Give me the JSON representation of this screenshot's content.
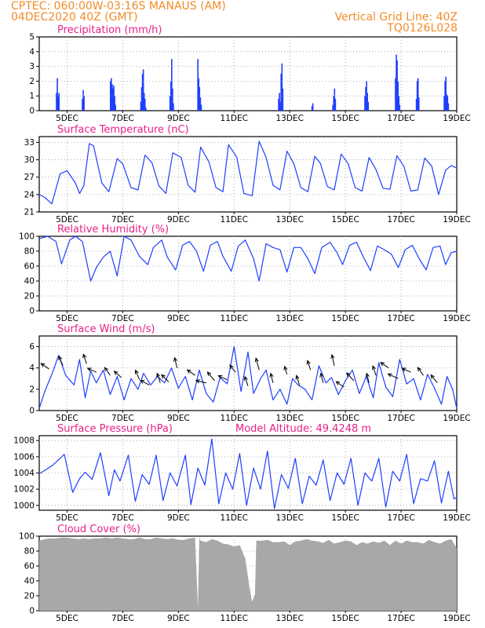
{
  "header": {
    "line1_left": "CPTEC:   060:00W-03:16S   MANAUS (AM)",
    "line2_left": "04DEC2020 40Z (GMT)",
    "line2_right": "Vertical Grid Line: 40Z",
    "line3_right": "TQ0126L028"
  },
  "colors": {
    "header": "#f08c28",
    "title": "#e8208a",
    "series": "#1f3fff",
    "arrow": "#000000",
    "cloud": "#a8a8a8",
    "grid": "#9a9a9a"
  },
  "x_axis": {
    "range_days": [
      4.0,
      19.0
    ],
    "tick_days": [
      5,
      7,
      9,
      11,
      13,
      15,
      17,
      19
    ],
    "tick_labels": [
      "5DEC",
      "7DEC",
      "9DEC",
      "11DEC",
      "13DEC",
      "15DEC",
      "17DEC",
      "19DEC"
    ]
  },
  "chart_data": [
    {
      "id": "precip",
      "type": "bar",
      "title": "Precipitation (mm/h)",
      "ylim": [
        0,
        5
      ],
      "yticks": [
        0,
        1,
        2,
        3,
        4,
        5
      ],
      "x": [
        4.62,
        4.65,
        4.68,
        4.71,
        5.55,
        5.58,
        5.61,
        6.56,
        6.59,
        6.62,
        6.65,
        6.68,
        6.71,
        6.74,
        7.65,
        7.68,
        7.71,
        7.74,
        7.77,
        7.8,
        7.83,
        8.7,
        8.73,
        8.76,
        8.79,
        8.82,
        9.7,
        9.73,
        9.76,
        9.79,
        9.82,
        12.6,
        12.63,
        12.66,
        12.69,
        12.72,
        12.75,
        13.8,
        13.83,
        14.55,
        14.58,
        14.61,
        14.64,
        15.7,
        15.73,
        15.76,
        15.79,
        15.82,
        16.8,
        16.83,
        16.86,
        16.89,
        16.92,
        16.95,
        17.55,
        17.58,
        17.61,
        17.64,
        18.55,
        18.58,
        18.61,
        18.64,
        18.67,
        18.7
      ],
      "values": [
        1.2,
        2.2,
        1.0,
        1.2,
        0.8,
        1.4,
        1.0,
        2.0,
        2.2,
        1.8,
        1.5,
        1.7,
        1.0,
        0.4,
        0.6,
        1.6,
        2.5,
        2.8,
        1.2,
        0.8,
        0.2,
        1.0,
        2.0,
        3.5,
        1.5,
        0.5,
        3.5,
        2.2,
        1.6,
        0.9,
        0.4,
        0.8,
        1.2,
        0.6,
        2.5,
        3.2,
        1.5,
        0.3,
        0.5,
        0.4,
        1.0,
        1.5,
        0.8,
        1.0,
        1.6,
        2.0,
        1.2,
        0.6,
        2.2,
        3.8,
        3.4,
        2.0,
        1.0,
        0.4,
        0.8,
        2.0,
        2.2,
        0.9,
        1.0,
        2.0,
        2.3,
        1.1,
        1.0,
        0.5
      ]
    },
    {
      "id": "temperature",
      "type": "line",
      "title": "Surface Temperature (nC)",
      "ylim": [
        21,
        34
      ],
      "yticks": [
        21,
        24,
        27,
        30,
        33
      ],
      "x": [
        4.0,
        4.2,
        4.45,
        4.75,
        5.0,
        5.3,
        5.45,
        5.6,
        5.8,
        5.95,
        6.25,
        6.5,
        6.8,
        7.0,
        7.3,
        7.55,
        7.8,
        8.05,
        8.3,
        8.55,
        8.8,
        9.1,
        9.35,
        9.6,
        9.8,
        10.1,
        10.35,
        10.6,
        10.8,
        11.1,
        11.35,
        11.65,
        11.9,
        12.15,
        12.4,
        12.65,
        12.9,
        13.15,
        13.4,
        13.65,
        13.9,
        14.1,
        14.35,
        14.6,
        14.85,
        15.1,
        15.35,
        15.6,
        15.85,
        16.1,
        16.35,
        16.6,
        16.85,
        17.1,
        17.35,
        17.6,
        17.85,
        18.1,
        18.35,
        18.6,
        18.8,
        19.0
      ],
      "values": [
        24.0,
        23.5,
        22.4,
        27.6,
        28.1,
        26.0,
        24.2,
        25.5,
        32.8,
        32.4,
        26.0,
        24.5,
        30.2,
        29.3,
        25.2,
        24.8,
        30.8,
        29.5,
        25.5,
        24.2,
        31.2,
        30.4,
        25.6,
        24.4,
        32.2,
        29.6,
        25.2,
        24.5,
        32.6,
        30.4,
        24.2,
        23.8,
        33.2,
        30.4,
        25.6,
        24.8,
        31.5,
        29.3,
        25.2,
        24.5,
        30.6,
        29.4,
        25.4,
        24.8,
        31.0,
        29.3,
        25.2,
        24.6,
        30.4,
        28.3,
        25.1,
        24.9,
        30.7,
        28.9,
        24.6,
        24.8,
        30.3,
        28.9,
        24.0,
        28.2,
        29.0,
        28.6
      ]
    },
    {
      "id": "humidity",
      "type": "line",
      "title": "Relative Humidity (%)",
      "ylim": [
        0,
        100
      ],
      "yticks": [
        0,
        20,
        40,
        60,
        80,
        100
      ],
      "x": [
        4.0,
        4.3,
        4.6,
        4.8,
        5.1,
        5.3,
        5.55,
        5.85,
        6.05,
        6.3,
        6.55,
        6.8,
        7.05,
        7.3,
        7.6,
        7.9,
        8.1,
        8.4,
        8.6,
        8.9,
        9.15,
        9.4,
        9.65,
        9.9,
        10.15,
        10.4,
        10.6,
        10.9,
        11.15,
        11.4,
        11.7,
        11.9,
        12.15,
        12.4,
        12.65,
        12.9,
        13.15,
        13.4,
        13.65,
        13.9,
        14.15,
        14.45,
        14.7,
        14.9,
        15.15,
        15.4,
        15.65,
        15.9,
        16.15,
        16.4,
        16.65,
        16.9,
        17.15,
        17.4,
        17.65,
        17.9,
        18.15,
        18.4,
        18.6,
        18.8,
        19.0
      ],
      "values": [
        97,
        100,
        93,
        63,
        95,
        100,
        93,
        40,
        58,
        72,
        80,
        47,
        100,
        95,
        73,
        62,
        85,
        95,
        72,
        55,
        88,
        93,
        80,
        53,
        88,
        93,
        73,
        53,
        87,
        95,
        70,
        40,
        90,
        85,
        82,
        52,
        85,
        85,
        70,
        50,
        85,
        92,
        78,
        62,
        88,
        92,
        72,
        54,
        87,
        82,
        76,
        58,
        82,
        88,
        70,
        55,
        85,
        87,
        62,
        78,
        80
      ]
    },
    {
      "id": "wind",
      "type": "line",
      "title": "Surface Wind (m/s)",
      "ylim": [
        0,
        7
      ],
      "yticks": [
        0,
        2,
        4,
        6
      ],
      "x": [
        4.0,
        4.2,
        4.45,
        4.7,
        4.95,
        5.25,
        5.45,
        5.65,
        5.85,
        6.05,
        6.3,
        6.55,
        6.8,
        7.05,
        7.3,
        7.55,
        7.75,
        8.0,
        8.25,
        8.5,
        8.75,
        9.0,
        9.25,
        9.5,
        9.75,
        10.0,
        10.25,
        10.5,
        10.75,
        11.0,
        11.25,
        11.5,
        11.7,
        11.95,
        12.15,
        12.4,
        12.65,
        12.9,
        13.1,
        13.3,
        13.55,
        13.8,
        14.05,
        14.3,
        14.5,
        14.75,
        15.0,
        15.25,
        15.5,
        15.75,
        16.0,
        16.2,
        16.45,
        16.7,
        16.95,
        17.2,
        17.45,
        17.7,
        17.95,
        18.2,
        18.45,
        18.65,
        18.85,
        19.0
      ],
      "values": [
        0.2,
        1.8,
        3.4,
        5.2,
        3.3,
        2.4,
        4.8,
        1.2,
        3.7,
        2.6,
        3.8,
        1.5,
        3.2,
        1.0,
        3.0,
        2.0,
        3.5,
        2.4,
        3.2,
        2.6,
        4.0,
        2.1,
        3.2,
        1.0,
        3.8,
        1.6,
        0.8,
        3.1,
        2.5,
        6.0,
        1.8,
        5.5,
        1.6,
        3.0,
        3.8,
        1.0,
        2.0,
        0.6,
        3.0,
        2.4,
        2.0,
        1.0,
        4.2,
        2.6,
        3.1,
        1.5,
        2.8,
        3.8,
        1.6,
        3.2,
        1.2,
        4.5,
        2.2,
        1.3,
        4.8,
        2.5,
        3.0,
        1.0,
        3.4,
        2.1,
        0.6,
        3.2,
        2.0,
        0.2
      ],
      "arrows": [
        {
          "day": 4.35,
          "speed": 3.9,
          "dx": -10,
          "dy": -7
        },
        {
          "day": 4.85,
          "speed": 4.2,
          "dx": -5,
          "dy": -12
        },
        {
          "day": 5.7,
          "speed": 4.4,
          "dx": -4,
          "dy": -12
        },
        {
          "day": 6.05,
          "speed": 3.6,
          "dx": -11,
          "dy": -5
        },
        {
          "day": 6.55,
          "speed": 3.3,
          "dx": -7,
          "dy": -10
        },
        {
          "day": 6.95,
          "speed": 3.1,
          "dx": -9,
          "dy": -8
        },
        {
          "day": 7.6,
          "speed": 2.9,
          "dx": -5,
          "dy": -12
        },
        {
          "day": 7.95,
          "speed": 2.4,
          "dx": -11,
          "dy": -6
        },
        {
          "day": 8.35,
          "speed": 2.6,
          "dx": -4,
          "dy": -12
        },
        {
          "day": 8.65,
          "speed": 2.7,
          "dx": -9,
          "dy": -9
        },
        {
          "day": 8.95,
          "speed": 4.0,
          "dx": -3,
          "dy": -13
        },
        {
          "day": 9.6,
          "speed": 3.3,
          "dx": -10,
          "dy": -7
        },
        {
          "day": 10.0,
          "speed": 2.6,
          "dx": -13,
          "dy": -3
        },
        {
          "day": 10.3,
          "speed": 2.8,
          "dx": -9,
          "dy": -11
        },
        {
          "day": 10.75,
          "speed": 2.9,
          "dx": -11,
          "dy": -5
        },
        {
          "day": 11.05,
          "speed": 3.6,
          "dx": -7,
          "dy": -9
        },
        {
          "day": 11.5,
          "speed": 2.3,
          "dx": -4,
          "dy": -12
        },
        {
          "day": 11.9,
          "speed": 3.8,
          "dx": -4,
          "dy": -15
        },
        {
          "day": 12.4,
          "speed": 2.6,
          "dx": -3,
          "dy": -12
        },
        {
          "day": 12.9,
          "speed": 3.4,
          "dx": -3,
          "dy": -10
        },
        {
          "day": 13.35,
          "speed": 2.4,
          "dx": -4,
          "dy": -12
        },
        {
          "day": 13.75,
          "speed": 3.8,
          "dx": -4,
          "dy": -12
        },
        {
          "day": 14.2,
          "speed": 2.6,
          "dx": -3,
          "dy": -12
        },
        {
          "day": 14.6,
          "speed": 4.2,
          "dx": -3,
          "dy": -14
        },
        {
          "day": 14.95,
          "speed": 2.2,
          "dx": -10,
          "dy": -7
        },
        {
          "day": 15.3,
          "speed": 2.8,
          "dx": -9,
          "dy": -10
        },
        {
          "day": 15.85,
          "speed": 2.6,
          "dx": -3,
          "dy": -12
        },
        {
          "day": 16.1,
          "speed": 3.3,
          "dx": -4,
          "dy": -12
        },
        {
          "day": 16.55,
          "speed": 4.0,
          "dx": -10,
          "dy": -7
        },
        {
          "day": 16.9,
          "speed": 3.0,
          "dx": -13,
          "dy": -6
        },
        {
          "day": 17.35,
          "speed": 3.6,
          "dx": -11,
          "dy": -5
        },
        {
          "day": 17.8,
          "speed": 3.3,
          "dx": -7,
          "dy": -10
        },
        {
          "day": 18.3,
          "speed": 2.6,
          "dx": -8,
          "dy": -10
        }
      ]
    },
    {
      "id": "pressure",
      "type": "line",
      "title": "Surface Pressure (hPa)",
      "annotation": "Model Altitude: 49.4248 m",
      "ylim": [
        999.4,
        1008.6
      ],
      "yticks": [
        1000,
        1002,
        1004,
        1006,
        1008
      ],
      "x": [
        4.0,
        4.15,
        4.5,
        4.9,
        5.2,
        5.45,
        5.65,
        5.9,
        6.2,
        6.5,
        6.7,
        6.9,
        7.2,
        7.45,
        7.7,
        7.95,
        8.2,
        8.45,
        8.7,
        8.95,
        9.25,
        9.45,
        9.7,
        9.95,
        10.2,
        10.45,
        10.7,
        10.95,
        11.2,
        11.45,
        11.7,
        11.95,
        12.2,
        12.45,
        12.7,
        12.95,
        13.2,
        13.45,
        13.7,
        13.95,
        14.2,
        14.45,
        14.7,
        14.95,
        15.2,
        15.45,
        15.7,
        15.95,
        16.2,
        16.45,
        16.7,
        16.95,
        17.2,
        17.45,
        17.7,
        17.95,
        18.2,
        18.45,
        18.7,
        18.9,
        19.0
      ],
      "values": [
        1003.9,
        1004.2,
        1005.0,
        1006.3,
        1001.6,
        1003.3,
        1004.1,
        1003.2,
        1006.5,
        1001.2,
        1004.4,
        1003.0,
        1006.2,
        1000.5,
        1003.8,
        1002.6,
        1006.2,
        1000.6,
        1004.0,
        1002.4,
        1006.2,
        1000.1,
        1004.6,
        1002.5,
        1008.2,
        1000.2,
        1004.0,
        1002.0,
        1006.4,
        1000.0,
        1004.6,
        1002.0,
        1006.7,
        999.6,
        1003.8,
        1002.1,
        1005.8,
        1000.2,
        1003.6,
        1002.5,
        1005.6,
        1000.6,
        1004.0,
        1002.6,
        1005.8,
        1000.0,
        1004.0,
        1003.0,
        1005.8,
        999.8,
        1004.2,
        1003.0,
        1006.3,
        1000.2,
        1003.3,
        1003.0,
        1005.5,
        1000.3,
        1004.2,
        1000.8,
        1001.0
      ]
    },
    {
      "id": "cloud",
      "type": "area",
      "title": "Cloud Cover (%)",
      "ylim": [
        0,
        100
      ],
      "yticks": [
        0,
        20,
        40,
        60,
        80,
        100
      ],
      "x": [
        4.0,
        4.2,
        4.4,
        4.6,
        4.8,
        5.0,
        5.2,
        5.4,
        5.6,
        5.8,
        6.0,
        6.2,
        6.4,
        6.6,
        6.8,
        7.0,
        7.2,
        7.4,
        7.6,
        7.8,
        8.0,
        8.2,
        8.4,
        8.6,
        8.8,
        9.0,
        9.2,
        9.4,
        9.6,
        9.7,
        9.75,
        9.8,
        10.0,
        10.2,
        10.4,
        10.6,
        10.8,
        11.0,
        11.2,
        11.4,
        11.55,
        11.65,
        11.75,
        11.8,
        12.0,
        12.2,
        12.4,
        12.6,
        12.8,
        13.0,
        13.2,
        13.4,
        13.6,
        13.8,
        14.0,
        14.2,
        14.4,
        14.6,
        14.8,
        15.0,
        15.2,
        15.4,
        15.6,
        15.8,
        16.0,
        16.2,
        16.4,
        16.6,
        16.8,
        17.0,
        17.2,
        17.4,
        17.6,
        17.8,
        18.0,
        18.2,
        18.4,
        18.6,
        18.8,
        19.0
      ],
      "values": [
        94,
        96,
        97,
        97,
        98,
        98,
        97,
        96,
        97,
        96,
        97,
        97,
        98,
        97,
        98,
        97,
        96,
        96,
        98,
        96,
        96,
        98,
        97,
        96,
        97,
        95,
        95,
        97,
        98,
        2,
        98,
        94,
        92,
        96,
        94,
        90,
        89,
        86,
        88,
        70,
        32,
        12,
        22,
        94,
        94,
        95,
        92,
        92,
        93,
        88,
        93,
        94,
        96,
        94,
        93,
        91,
        95,
        90,
        92,
        94,
        93,
        88,
        92,
        90,
        93,
        91,
        94,
        88,
        94,
        90,
        94,
        92,
        92,
        90,
        95,
        92,
        90,
        94,
        96,
        84
      ]
    }
  ]
}
